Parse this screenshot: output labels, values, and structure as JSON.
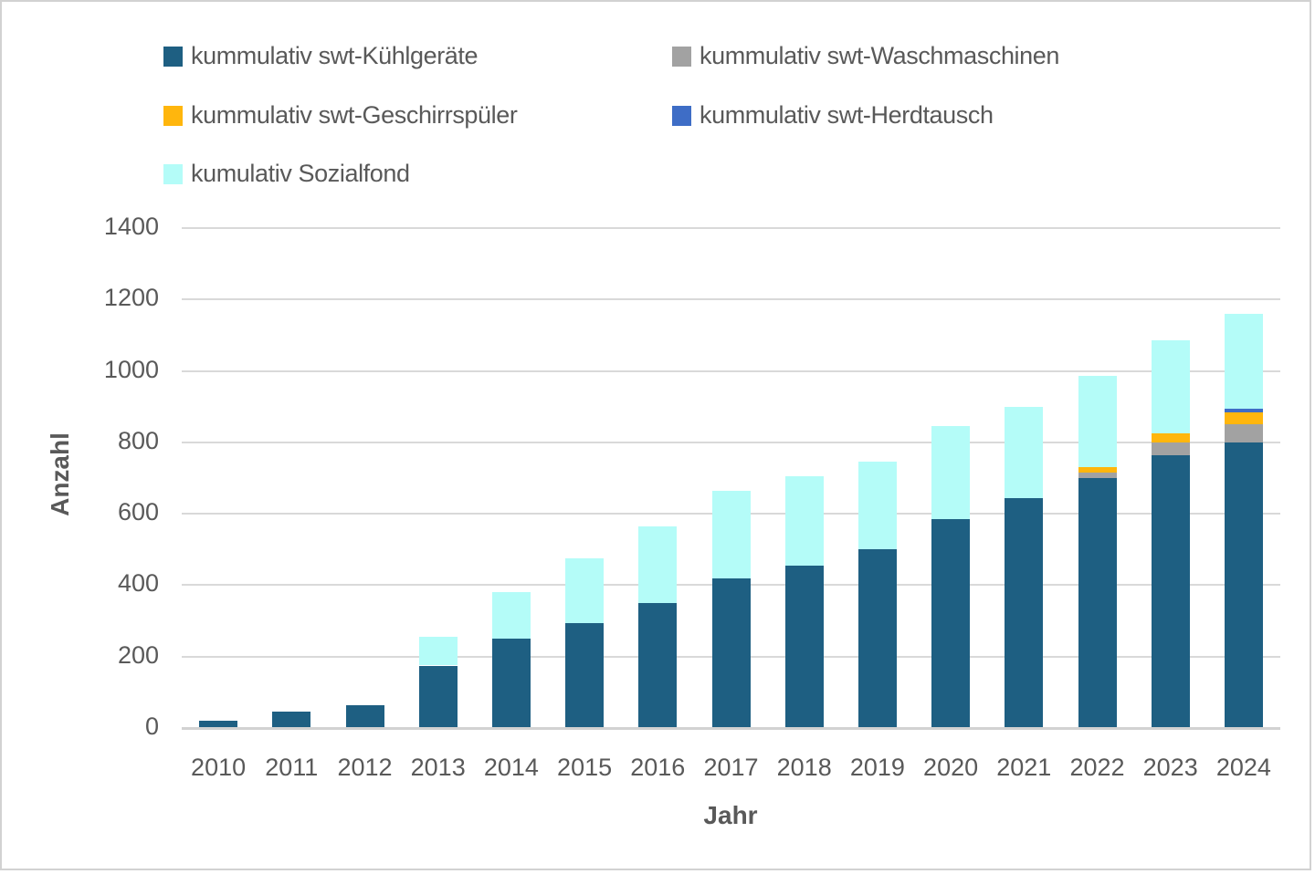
{
  "chart_data": {
    "type": "bar",
    "stacked": true,
    "title": "",
    "xlabel": "Jahr",
    "ylabel": "Anzahl",
    "ylim": [
      0,
      1400
    ],
    "ytick_step": 200,
    "grid": true,
    "legend_position": "top-left, two columns",
    "text_color": "#595959",
    "gridline_color": "#d9d9d9",
    "categories": [
      "2010",
      "2011",
      "2012",
      "2013",
      "2014",
      "2015",
      "2016",
      "2017",
      "2018",
      "2019",
      "2020",
      "2021",
      "2022",
      "2023",
      "2024"
    ],
    "series": [
      {
        "name": "kummulativ swt-Kühlgeräte",
        "color": "#1e5f82",
        "values": [
          20,
          45,
          65,
          175,
          250,
          295,
          350,
          420,
          455,
          500,
          585,
          645,
          700,
          765,
          800
        ]
      },
      {
        "name": "kummulativ swt-Waschmaschinen",
        "color": "#a2a2a2",
        "values": [
          0,
          0,
          0,
          0,
          0,
          0,
          0,
          0,
          0,
          0,
          0,
          0,
          15,
          35,
          50
        ]
      },
      {
        "name": "kummulativ swt-Geschirrspüler",
        "color": "#ffb60d",
        "values": [
          0,
          0,
          0,
          0,
          0,
          0,
          0,
          0,
          0,
          0,
          0,
          0,
          15,
          25,
          35
        ]
      },
      {
        "name": "kummulativ swt-Herdtausch",
        "color": "#3e6dc6",
        "values": [
          0,
          0,
          0,
          0,
          0,
          0,
          0,
          0,
          0,
          0,
          0,
          0,
          0,
          0,
          10
        ]
      },
      {
        "name": "kumulativ Sozialfond",
        "color": "#b4fcf8",
        "values": [
          0,
          0,
          0,
          80,
          130,
          180,
          215,
          245,
          250,
          245,
          260,
          255,
          255,
          260,
          265
        ]
      }
    ]
  }
}
